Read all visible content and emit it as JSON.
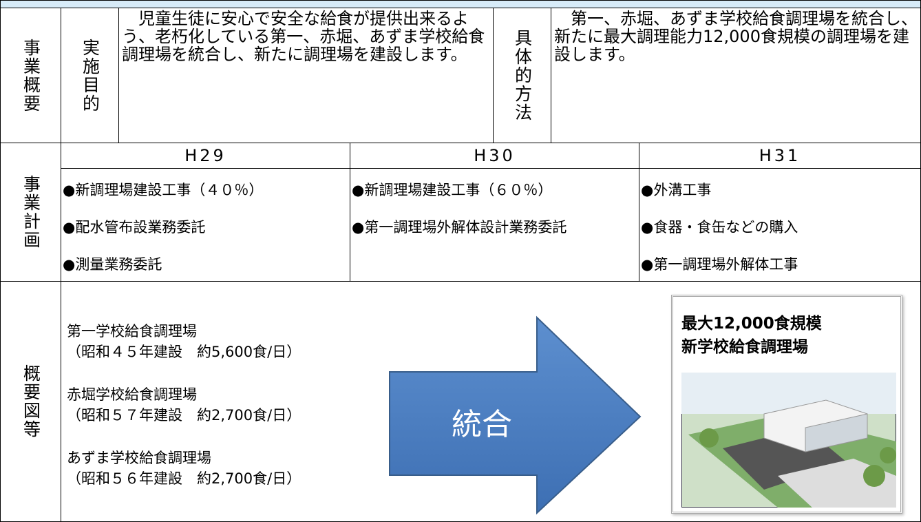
{
  "overview": {
    "label": "事業概要",
    "purpose_label": "実施目的",
    "purpose": "　児童生徒に安心で安全な給食が提供出来るよう、老朽化している第一、赤堀、あずま学校給食調理場を統合し、新たに調理場を建設します。",
    "method_label": "具体的方法",
    "method": "　第一、赤堀、あずま学校給食調理場を統合し、新たに最大調理能力12,000食規模の調理場を建設します。"
  },
  "plan": {
    "label": "事業計画",
    "years": [
      {
        "year": "H29",
        "items": [
          "●新調理場建設工事（４０％）",
          "●配水管布設業務委託",
          "●測量業務委託"
        ]
      },
      {
        "year": "H30",
        "items": [
          "●新調理場建設工事（６０％）",
          "●第一調理場外解体設計業務委託"
        ]
      },
      {
        "year": "H31",
        "items": [
          "●外溝工事",
          "●食器・食缶などの購入",
          "●第一調理場外解体工事"
        ]
      }
    ]
  },
  "diagram": {
    "label": "概要図等",
    "sources": [
      {
        "name": "第一学校給食調理場",
        "detail": "（昭和４５年建設　約5,600食/日）"
      },
      {
        "name": "赤堀学校給食調理場",
        "detail": "（昭和５７年建設　約2,700食/日）"
      },
      {
        "name": "あずま学校給食調理場",
        "detail": "（昭和５６年建設　約2,700食/日）"
      }
    ],
    "arrow_label": "統合",
    "result": [
      "最大12,000食規模",
      "新学校給食調理場"
    ]
  }
}
